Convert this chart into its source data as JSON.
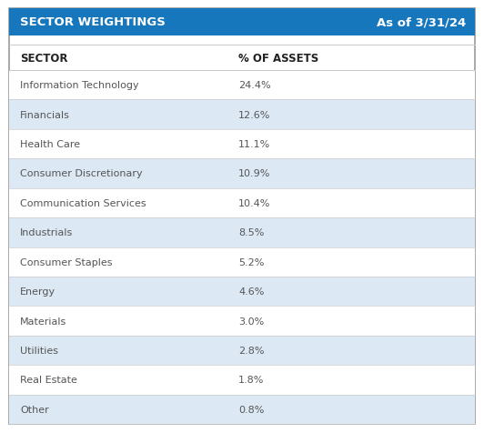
{
  "title": "SECTOR WEIGHTINGS",
  "date_label": "As of 3/31/24",
  "col1_header": "SECTOR",
  "col2_header": "% OF ASSETS",
  "rows": [
    [
      "Information Technology",
      "24.4%"
    ],
    [
      "Financials",
      "12.6%"
    ],
    [
      "Health Care",
      "11.1%"
    ],
    [
      "Consumer Discretionary",
      "10.9%"
    ],
    [
      "Communication Services",
      "10.4%"
    ],
    [
      "Industrials",
      "8.5%"
    ],
    [
      "Consumer Staples",
      "5.2%"
    ],
    [
      "Energy",
      "4.6%"
    ],
    [
      "Materials",
      "3.0%"
    ],
    [
      "Utilities",
      "2.8%"
    ],
    [
      "Real Estate",
      "1.8%"
    ],
    [
      "Other",
      "0.8%"
    ]
  ],
  "header_bg": "#1777bc",
  "header_fg": "#ffffff",
  "alt_row_bg": "#dce9f5",
  "white_row_bg": "#ffffff",
  "col_header_fg": "#222222",
  "data_fg": "#555555",
  "border_color": "#cccccc",
  "outer_border_color": "#999999",
  "fig_bg": "#ffffff",
  "header_fontsize": 9.5,
  "col_header_fontsize": 8.5,
  "data_fontsize": 8.0
}
